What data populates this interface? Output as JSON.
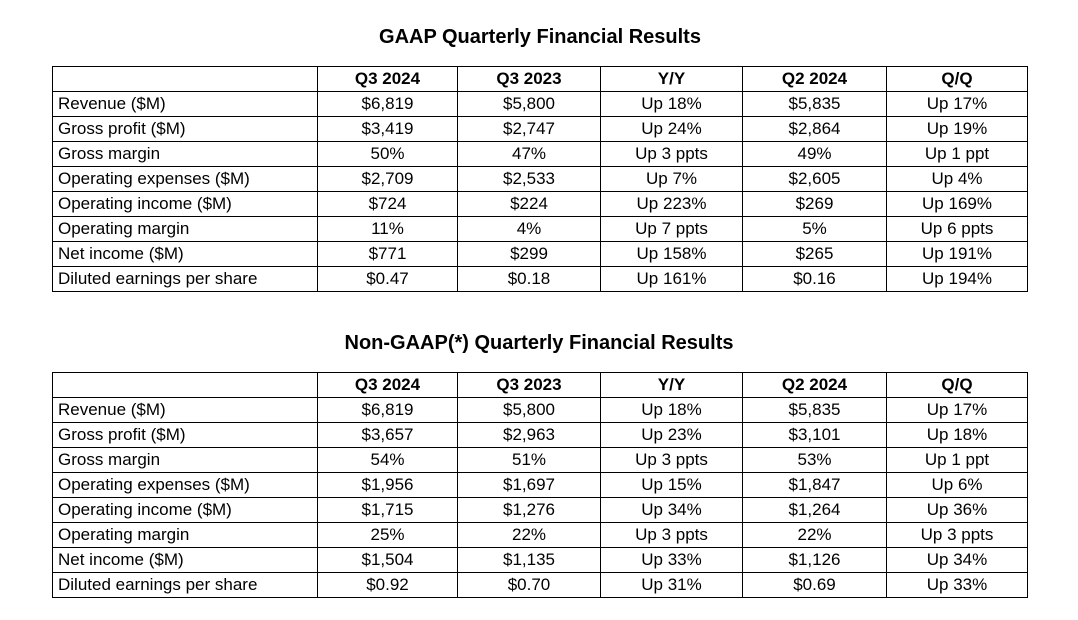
{
  "gaap": {
    "title": "GAAP Quarterly Financial Results",
    "headers": [
      "",
      "Q3 2024",
      "Q3 2023",
      "Y/Y",
      "Q2 2024",
      "Q/Q"
    ],
    "rows": [
      {
        "label": "Revenue ($M)",
        "values": [
          "$6,819",
          "$5,800",
          "Up 18%",
          "$5,835",
          "Up 17%"
        ]
      },
      {
        "label": "Gross profit ($M)",
        "values": [
          "$3,419",
          "$2,747",
          "Up 24%",
          "$2,864",
          "Up 19%"
        ]
      },
      {
        "label": "Gross margin",
        "values": [
          "50%",
          "47%",
          "Up 3 ppts",
          "49%",
          "Up 1 ppt"
        ]
      },
      {
        "label": "Operating expenses ($M)",
        "values": [
          "$2,709",
          "$2,533",
          "Up 7%",
          "$2,605",
          "Up 4%"
        ]
      },
      {
        "label": "Operating income ($M)",
        "values": [
          "$724",
          "$224",
          "Up 223%",
          "$269",
          "Up 169%"
        ]
      },
      {
        "label": "Operating margin",
        "values": [
          "11%",
          "4%",
          "Up 7 ppts",
          "5%",
          "Up 6 ppts"
        ]
      },
      {
        "label": "Net income ($M)",
        "values": [
          "$771",
          "$299",
          "Up 158%",
          "$265",
          "Up 191%"
        ]
      },
      {
        "label": "Diluted earnings per share",
        "values": [
          "$0.47",
          "$0.18",
          "Up 161%",
          "$0.16",
          "Up 194%"
        ]
      }
    ]
  },
  "non_gaap": {
    "title": "Non-GAAP(*) Quarterly Financial Results",
    "headers": [
      "",
      "Q3 2024",
      "Q3 2023",
      "Y/Y",
      "Q2 2024",
      "Q/Q"
    ],
    "rows": [
      {
        "label": "Revenue ($M)",
        "values": [
          "$6,819",
          "$5,800",
          "Up 18%",
          "$5,835",
          "Up 17%"
        ]
      },
      {
        "label": "Gross profit ($M)",
        "values": [
          "$3,657",
          "$2,963",
          "Up 23%",
          "$3,101",
          "Up 18%"
        ]
      },
      {
        "label": "Gross margin",
        "values": [
          "54%",
          "51%",
          "Up 3 ppts",
          "53%",
          "Up 1 ppt"
        ]
      },
      {
        "label": "Operating expenses ($M)",
        "values": [
          "$1,956",
          "$1,697",
          "Up 15%",
          "$1,847",
          "Up 6%"
        ]
      },
      {
        "label": "Operating income ($M)",
        "values": [
          "$1,715",
          "$1,276",
          "Up 34%",
          "$1,264",
          "Up 36%"
        ]
      },
      {
        "label": "Operating margin",
        "values": [
          "25%",
          "22%",
          "Up 3 ppts",
          "22%",
          "Up 3 ppts"
        ]
      },
      {
        "label": "Net income ($M)",
        "values": [
          "$1,504",
          "$1,135",
          "Up 33%",
          "$1,126",
          "Up 34%"
        ]
      },
      {
        "label": "Diluted earnings per share",
        "values": [
          "$0.92",
          "$0.70",
          "Up 31%",
          "$0.69",
          "Up 33%"
        ]
      }
    ]
  }
}
